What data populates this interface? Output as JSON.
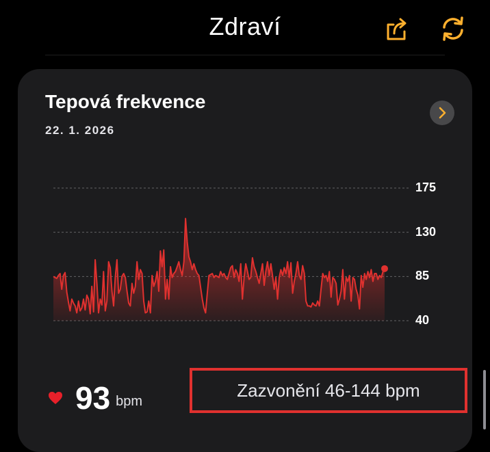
{
  "header": {
    "title": "Zdraví",
    "share_icon": "share-icon",
    "sync_icon": "sync-icon",
    "accent_color": "#ffb02e"
  },
  "card": {
    "title": "Tepová frekvence",
    "date": "22. 1. 2026",
    "chevron_icon": "chevron-right-icon",
    "stat": {
      "heart_icon": "heart-icon",
      "value": "93",
      "unit": "bpm"
    },
    "range_label": "Zazvonění 46-144 bpm"
  },
  "chart_data": {
    "type": "area",
    "yticks": [
      "175",
      "130",
      "85",
      "40"
    ],
    "ylim": [
      40,
      175
    ],
    "grid": true,
    "color": "#e0312f",
    "y": [
      85,
      84,
      83,
      86,
      88,
      72,
      86,
      89,
      69,
      59,
      50,
      62,
      58,
      55,
      48,
      60,
      50,
      53,
      62,
      51,
      66,
      62,
      47,
      75,
      49,
      102,
      78,
      48,
      62,
      56,
      90,
      50,
      60,
      100,
      94,
      70,
      55,
      84,
      102,
      68,
      72,
      85,
      88,
      84,
      70,
      58,
      55,
      78,
      68,
      75,
      100,
      82,
      92,
      88,
      60,
      48,
      49,
      60,
      48,
      86,
      75,
      80,
      90,
      70,
      111,
      95,
      112,
      62,
      82,
      62,
      95,
      84,
      88,
      90,
      95,
      100,
      92,
      86,
      100,
      144,
      120,
      105,
      100,
      92,
      98,
      92,
      88,
      86,
      74,
      62,
      53,
      48,
      68,
      86,
      87,
      88,
      84,
      86,
      85,
      84,
      90,
      86,
      88,
      84,
      82,
      88,
      94,
      96,
      84,
      92,
      88,
      80,
      98,
      62,
      84,
      98,
      90,
      82,
      84,
      104,
      95,
      90,
      84,
      78,
      88,
      98,
      76,
      90,
      100,
      86,
      98,
      86,
      72,
      84,
      62,
      84,
      92,
      86,
      94,
      88,
      100,
      84,
      99,
      68,
      80,
      88,
      100,
      86,
      82,
      96,
      88,
      60,
      55,
      55,
      54,
      58,
      56,
      55,
      60,
      55,
      72,
      88,
      84,
      86,
      80,
      90,
      64,
      84,
      82,
      78,
      56,
      62,
      70,
      92,
      62,
      84,
      80,
      86,
      60,
      84,
      82,
      72,
      66,
      52,
      86,
      74,
      88,
      82,
      90,
      84,
      92,
      80,
      88,
      88,
      82,
      86,
      84,
      90,
      93
    ]
  }
}
